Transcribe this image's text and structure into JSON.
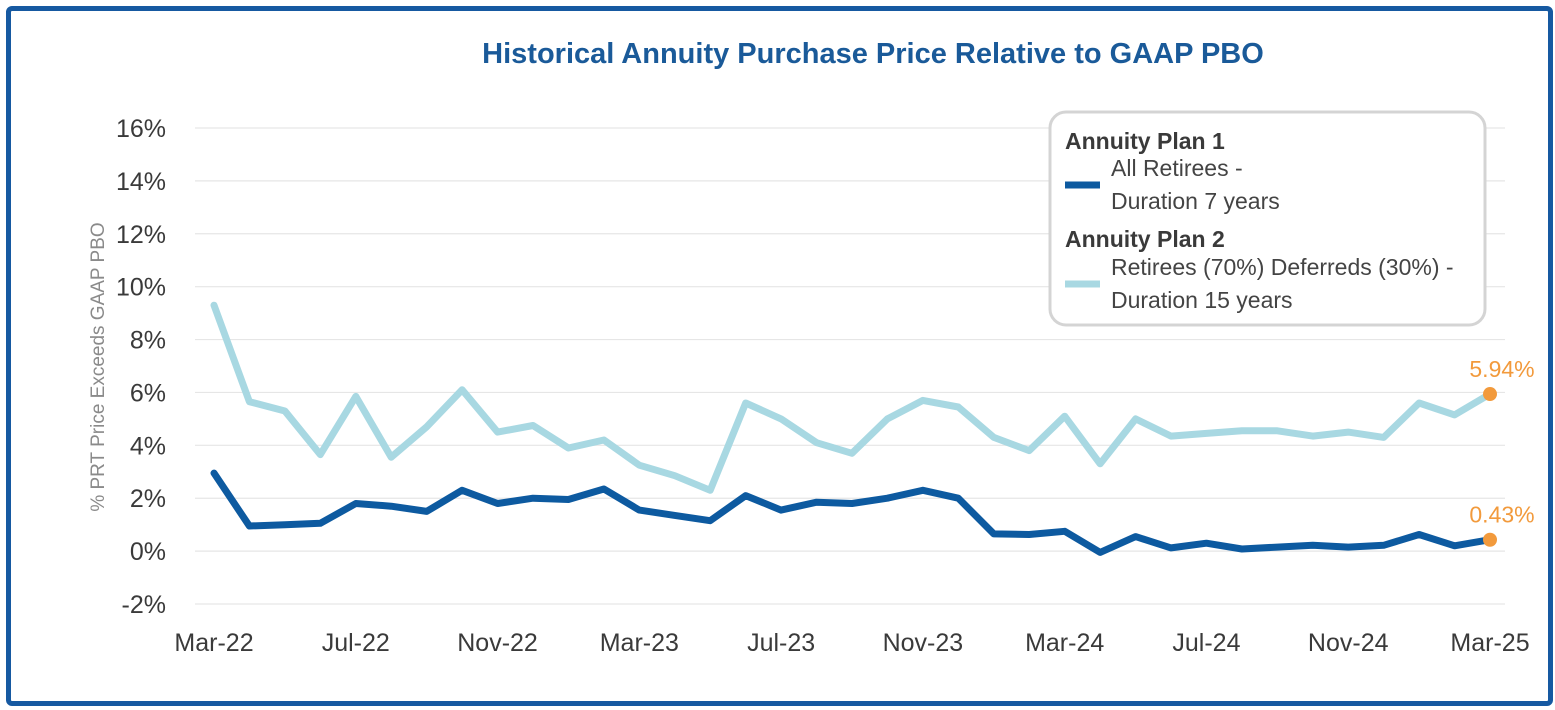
{
  "chart_data": {
    "type": "line",
    "title": "Historical Annuity Purchase Price Relative to GAAP PBO",
    "ylabel": "% PRT Price Exceeds GAAP PBO",
    "xlabel": "",
    "ylim": [
      -2,
      16
    ],
    "yticks": [
      "16%",
      "14%",
      "12%",
      "10%",
      "8%",
      "6%",
      "4%",
      "2%",
      "0%",
      "-2%"
    ],
    "ytick_values": [
      16,
      14,
      12,
      10,
      8,
      6,
      4,
      2,
      0,
      -2
    ],
    "xtick_labels": [
      "Mar-22",
      "Jul-22",
      "Nov-22",
      "Mar-23",
      "Jul-23",
      "Nov-23",
      "Mar-24",
      "Jul-24",
      "Nov-24",
      "Mar-25"
    ],
    "xtick_index": [
      0,
      4,
      8,
      12,
      16,
      20,
      24,
      28,
      32,
      36
    ],
    "grid": true,
    "legend_position": "top-right",
    "series": [
      {
        "name": "Annuity Plan 1",
        "legend_head": "Annuity Plan 1",
        "legend_line1": "All Retirees -",
        "legend_line2": "Duration 7 years",
        "color": "#0d5aa0",
        "end_label": "0.43%",
        "values": [
          2.95,
          0.95,
          1.0,
          1.05,
          1.8,
          1.7,
          1.5,
          2.3,
          1.8,
          2.0,
          1.95,
          2.35,
          1.55,
          1.35,
          1.15,
          2.1,
          1.55,
          1.85,
          1.8,
          2.0,
          2.3,
          2.0,
          0.65,
          0.63,
          0.75,
          -0.05,
          0.55,
          0.12,
          0.3,
          0.08,
          0.15,
          0.22,
          0.15,
          0.22,
          0.63,
          0.2,
          0.43
        ]
      },
      {
        "name": "Annuity Plan 2",
        "legend_head": "Annuity Plan 2",
        "legend_line1": "Retirees (70%) Deferreds (30%) -",
        "legend_line2": "Duration 15 years",
        "color": "#a8d8e2",
        "end_label": "5.94%",
        "values": [
          9.3,
          5.65,
          5.3,
          3.65,
          5.85,
          3.55,
          4.7,
          6.1,
          4.5,
          4.75,
          3.9,
          4.2,
          3.25,
          2.85,
          2.3,
          5.6,
          5.0,
          4.1,
          3.7,
          5.0,
          5.7,
          5.45,
          4.3,
          3.8,
          5.1,
          3.3,
          5.0,
          4.35,
          4.45,
          4.55,
          4.55,
          4.35,
          4.5,
          4.3,
          5.6,
          5.15,
          5.94
        ]
      }
    ],
    "end_marker_color": "#f29a3c"
  }
}
